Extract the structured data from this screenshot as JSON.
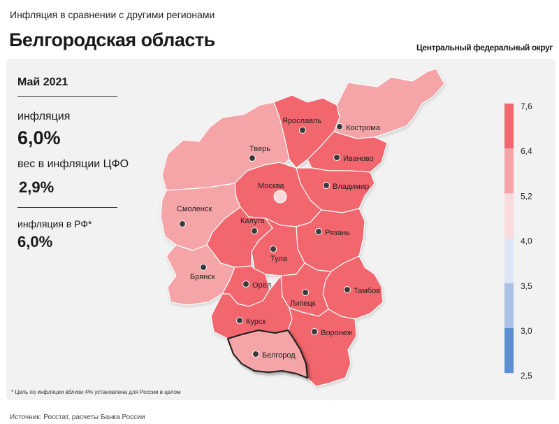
{
  "header": {
    "subtitle": "Инфляция в сравнении с другими регионами",
    "title": "Белгородская область",
    "district": "Центральный федеральный округ"
  },
  "stats": {
    "date": "Май 2021",
    "inflation_label": "инфляция",
    "inflation_value": "6,0%",
    "weight_label": "вес в инфляции ЦФО",
    "weight_value": "2,9%",
    "rf_label": "инфляция в РФ*",
    "rf_value": "6,0%"
  },
  "legend": {
    "ticks": [
      "7,6",
      "6,4",
      "5,2",
      "4,0",
      "3,5",
      "3,0",
      "2,5"
    ],
    "colors": [
      "#f2666d",
      "#f5a5a8",
      "#f9dadd",
      "#dde6f5",
      "#a9c2e6",
      "#5b8fcf"
    ]
  },
  "regions": [
    {
      "name": "Ярославль",
      "color": "#f5a5a8"
    },
    {
      "name": "Кострома",
      "color": "#f2666d"
    },
    {
      "name": "Тверь",
      "color": "#f5a5a8"
    },
    {
      "name": "Иваново",
      "color": "#f2666d"
    },
    {
      "name": "Москва",
      "color": "#f2666d"
    },
    {
      "name": "Владимир",
      "color": "#f2666d"
    },
    {
      "name": "Смоленск",
      "color": "#f5a5a8"
    },
    {
      "name": "Калуга",
      "color": "#f2666d"
    },
    {
      "name": "Рязань",
      "color": "#f2666d"
    },
    {
      "name": "Тула",
      "color": "#f2666d"
    },
    {
      "name": "Брянск",
      "color": "#f5a5a8"
    },
    {
      "name": "Орёл",
      "color": "#f2666d"
    },
    {
      "name": "Тамбов",
      "color": "#f2666d"
    },
    {
      "name": "Липецк",
      "color": "#f2666d"
    },
    {
      "name": "Курск",
      "color": "#f2666d"
    },
    {
      "name": "Воронеж",
      "color": "#f2666d"
    },
    {
      "name": "Белгород",
      "color": "#f5a5a8",
      "highlighted": true
    }
  ],
  "footnote": "* Цель по инфляции вблизи 4% установлена для России в целом",
  "source": "Источник: Росстат, расчеты Банка России"
}
